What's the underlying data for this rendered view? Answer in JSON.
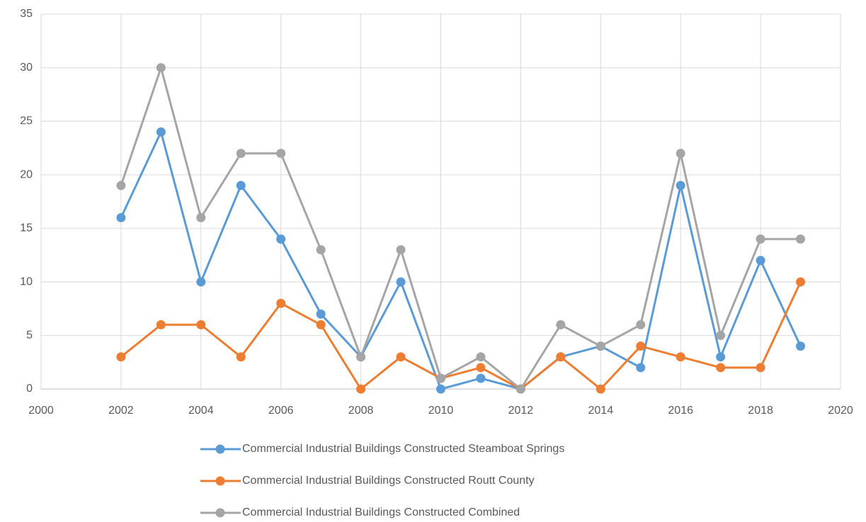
{
  "chart_data": {
    "type": "line",
    "x": [
      2002,
      2003,
      2004,
      2005,
      2006,
      2007,
      2008,
      2009,
      2010,
      2011,
      2012,
      2013,
      2014,
      2015,
      2016,
      2017,
      2018,
      2019
    ],
    "series": [
      {
        "name": "Commercial Industrial Buildings Constructed Steamboat Springs",
        "color": "#5b9bd5",
        "values": [
          16,
          24,
          10,
          19,
          14,
          7,
          3,
          10,
          0,
          1,
          0,
          3,
          4,
          2,
          19,
          3,
          12,
          4
        ]
      },
      {
        "name": "Commercial Industrial Buildings Constructed Routt County",
        "color": "#ed7d31",
        "values": [
          3,
          6,
          6,
          3,
          8,
          6,
          0,
          3,
          1,
          2,
          0,
          3,
          0,
          4,
          3,
          2,
          2,
          10
        ]
      },
      {
        "name": "Commercial Industrial Buildings Constructed Combined",
        "color": "#a5a5a5",
        "values": [
          19,
          30,
          16,
          22,
          22,
          13,
          3,
          13,
          1,
          3,
          0,
          6,
          4,
          6,
          22,
          5,
          14,
          14
        ]
      }
    ],
    "xlim": [
      2000,
      2020
    ],
    "xticks": [
      2000,
      2002,
      2004,
      2006,
      2008,
      2010,
      2012,
      2014,
      2016,
      2018,
      2020
    ],
    "ylim": [
      0,
      35
    ],
    "yticks": [
      0,
      5,
      10,
      15,
      20,
      25,
      30,
      35
    ],
    "grid": true,
    "legend": "bottom"
  }
}
